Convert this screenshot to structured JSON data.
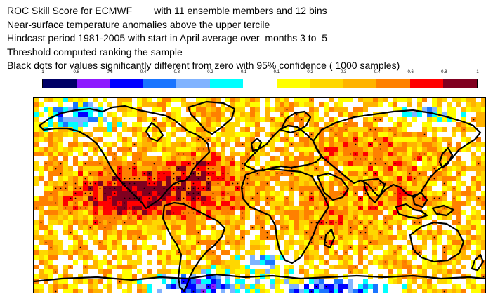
{
  "title_lines": [
    "ROC Skill Score for ECMWF        with 11 ensemble members and 12 bins",
    "Near-surface temperature anomalies above the upper tercile",
    "Hindcast period 1981-2005 with start in April average over  months 3 to  5",
    "Threshold computed ranking the sample",
    "Black dots for values significantly different from zero with 95% confidence ( 1000 samples)"
  ],
  "colorbar": {
    "labels": [
      "-1",
      "-0.8",
      "-0.6",
      "-0.4",
      "-0.3",
      "-0.2",
      "-0.1",
      "0.1",
      "0.2",
      "0.3",
      "0.4",
      "0.6",
      "0.8",
      "1"
    ],
    "colors": [
      "#000066",
      "#8c1aff",
      "#0000ff",
      "#1a75ff",
      "#80b3ff",
      "#00ffff",
      "#ffffff",
      "#ffff00",
      "#ffd700",
      "#ffb300",
      "#ff8000",
      "#ff0000",
      "#800020"
    ]
  },
  "map": {
    "projection": "global-lat-lon",
    "coastline_color": "#000000",
    "significance_marker": "black-dots"
  }
}
